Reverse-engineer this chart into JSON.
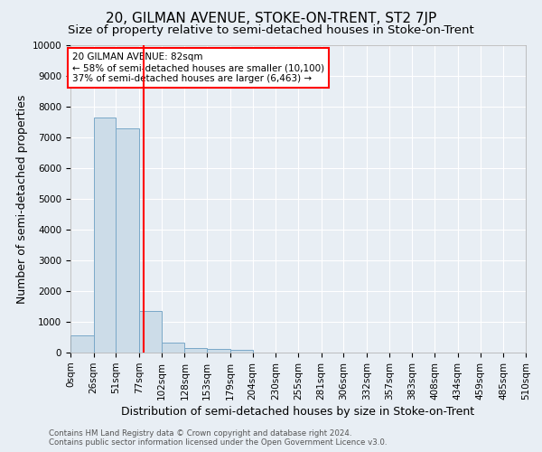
{
  "title": "20, GILMAN AVENUE, STOKE-ON-TRENT, ST2 7JP",
  "subtitle": "Size of property relative to semi-detached houses in Stoke-on-Trent",
  "xlabel": "Distribution of semi-detached houses by size in Stoke-on-Trent",
  "ylabel": "Number of semi-detached properties",
  "footer_line1": "Contains HM Land Registry data © Crown copyright and database right 2024.",
  "footer_line2": "Contains public sector information licensed under the Open Government Licence v3.0.",
  "bin_edges": [
    0,
    26,
    51,
    77,
    102,
    128,
    153,
    179,
    204,
    230,
    255,
    281,
    306,
    332,
    357,
    383,
    408,
    434,
    459,
    485,
    510
  ],
  "bin_counts": [
    550,
    7650,
    7300,
    1350,
    320,
    150,
    130,
    100,
    0,
    0,
    0,
    0,
    0,
    0,
    0,
    0,
    0,
    0,
    0,
    0
  ],
  "bar_color": "#ccdce8",
  "bar_edge_color": "#7aa8c8",
  "property_size": 82,
  "red_line_x": 82,
  "annotation_title": "20 GILMAN AVENUE: 82sqm",
  "annotation_line1": "← 58% of semi-detached houses are smaller (10,100)",
  "annotation_line2": "37% of semi-detached houses are larger (6,463) →",
  "annotation_box_color": "white",
  "annotation_box_edge_color": "red",
  "red_line_color": "red",
  "ylim": [
    0,
    10000
  ],
  "yticks": [
    0,
    1000,
    2000,
    3000,
    4000,
    5000,
    6000,
    7000,
    8000,
    9000,
    10000
  ],
  "xtick_labels": [
    "0sqm",
    "26sqm",
    "51sqm",
    "77sqm",
    "102sqm",
    "128sqm",
    "153sqm",
    "179sqm",
    "204sqm",
    "230sqm",
    "255sqm",
    "281sqm",
    "306sqm",
    "332sqm",
    "357sqm",
    "383sqm",
    "408sqm",
    "434sqm",
    "459sqm",
    "485sqm",
    "510sqm"
  ],
  "background_color": "#e8eef4",
  "grid_color": "white",
  "title_fontsize": 11,
  "subtitle_fontsize": 9.5,
  "axis_label_fontsize": 9,
  "xlabel_fontsize": 9,
  "tick_fontsize": 7.5,
  "annotation_fontsize": 7.5,
  "footer_fontsize": 6.2
}
